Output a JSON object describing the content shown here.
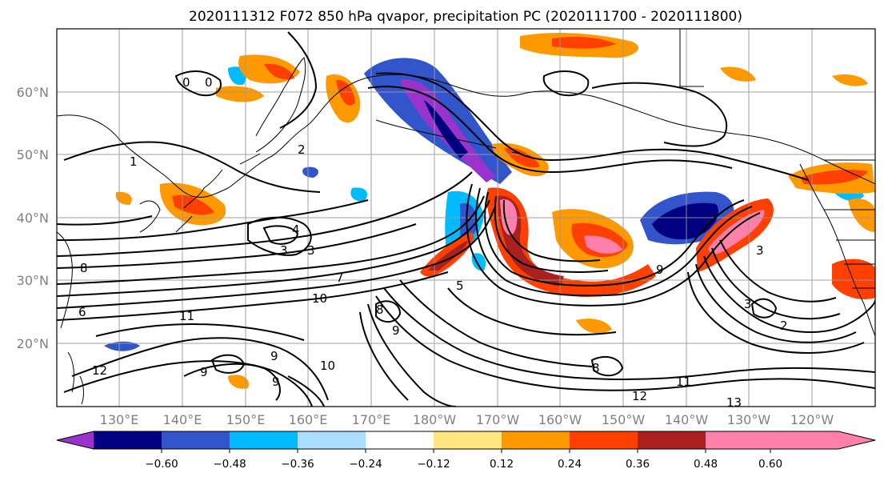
{
  "title": "2020111312 F072 850 hPa qvapor, precipitation PC (2020111700 - 2020111800)",
  "latitude_labels": [
    "60°N",
    "50°N",
    "40°N",
    "30°N",
    "20°N"
  ],
  "longitude_labels": [
    "130°E",
    "140°E",
    "150°E",
    "160°E",
    "170°E",
    "180°W",
    "170°W",
    "160°W",
    "150°W",
    "140°W",
    "130°W",
    "120°W"
  ],
  "colorbar": {
    "colors": [
      "#9933cc",
      "#000080",
      "#3355cc",
      "#00bbff",
      "#aaddff",
      "#ffffff",
      "#ffe680",
      "#ff9900",
      "#ff4000",
      "#aa2020",
      "#ff80aa"
    ],
    "tick_labels": [
      "−0.60",
      "−0.48",
      "−0.36",
      "−0.24",
      "−0.12",
      "0.12",
      "0.24",
      "0.36",
      "0.48",
      "0.60"
    ]
  },
  "contour_labels": [
    "0",
    "0",
    "2",
    "1",
    "4",
    "3",
    "3",
    "8",
    "6",
    "11",
    "10",
    "7",
    "5",
    "9",
    "8",
    "9",
    "12",
    "9",
    "10",
    "8",
    "12",
    "11",
    "13",
    "3",
    "9",
    "9",
    "3",
    "2"
  ]
}
